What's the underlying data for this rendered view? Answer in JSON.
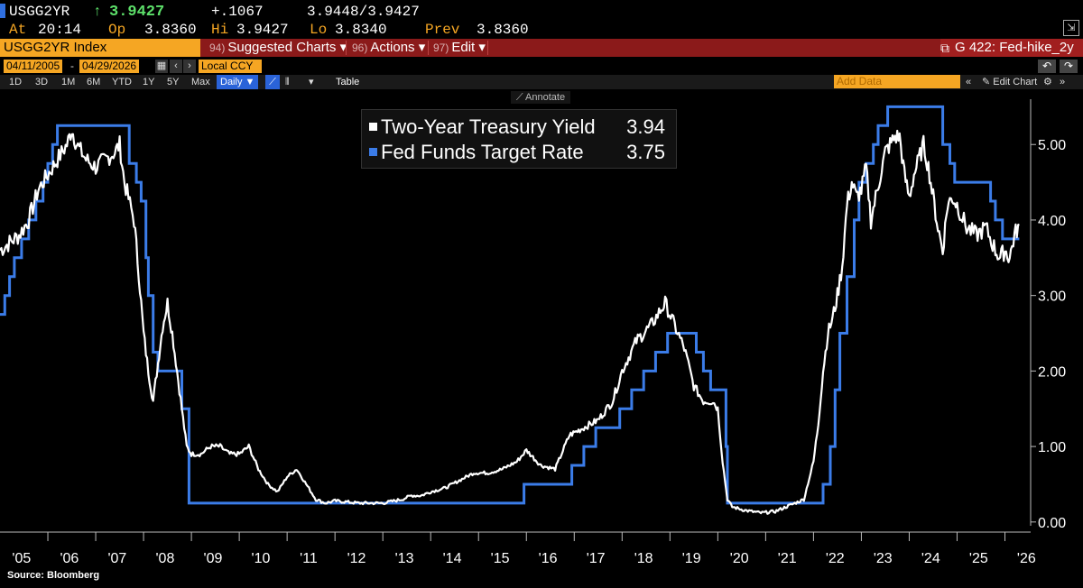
{
  "header": {
    "ticker": "USGG2YR",
    "last": "3.9427",
    "change": "+.1067",
    "bid_ask": "3.9448/3.9427",
    "at_label": "At",
    "at_time": "20:14",
    "open_label": "Op",
    "open": "3.8360",
    "high_label": "Hi",
    "high": "3.9427",
    "low_label": "Lo",
    "low": "3.8340",
    "prev_label": "Prev",
    "prev": "3.8360"
  },
  "toolbar": {
    "security": "USGG2YR Index",
    "suggested_num": "94)",
    "suggested": "Suggested Charts",
    "actions_num": "96)",
    "actions": "Actions",
    "edit_num": "97)",
    "edit": "Edit",
    "chart_name": "G 422: Fed-hike_2y"
  },
  "range": {
    "start": "04/11/2005",
    "end": "04/29/2026",
    "currency": "Local CCY"
  },
  "periods": [
    "1D",
    "3D",
    "1M",
    "6M",
    "YTD",
    "1Y",
    "5Y",
    "Max"
  ],
  "frequency": "Daily",
  "table_label": "Table",
  "add_data_placeholder": "Add Data",
  "edit_chart": "Edit Chart",
  "annotate": "Annotate",
  "source": "Source: Bloomberg",
  "colors": {
    "yield": "#ffffff",
    "fed_funds": "#3b7ce8",
    "accent": "#f5a623"
  },
  "chart_data": {
    "type": "line",
    "x_tick_labels": [
      "'05",
      "'06",
      "'07",
      "'08",
      "'09",
      "'10",
      "'11",
      "'12",
      "'13",
      "'14",
      "'15",
      "'16",
      "'17",
      "'18",
      "'19",
      "'20",
      "'21",
      "'22",
      "'23",
      "'24",
      "'25",
      "'26"
    ],
    "y_tick_labels": [
      "0.00",
      "1.00",
      "2.00",
      "3.00",
      "4.00",
      "5.00"
    ],
    "ylim": [
      -0.05,
      5.6
    ],
    "xlim": [
      2005.0,
      2026.5
    ],
    "grid": false,
    "legend_position": "top-center",
    "series": [
      {
        "name": "Two-Year Treasury Yield",
        "last_value": "3.94",
        "color": "#ffffff",
        "x": [
          2005.0,
          2005.2,
          2005.4,
          2005.6,
          2005.8,
          2006.0,
          2006.2,
          2006.4,
          2006.5,
          2006.6,
          2006.8,
          2007.0,
          2007.2,
          2007.4,
          2007.5,
          2007.6,
          2007.8,
          2007.9,
          2008.0,
          2008.1,
          2008.2,
          2008.3,
          2008.4,
          2008.5,
          2008.6,
          2008.7,
          2008.8,
          2008.9,
          2009.0,
          2009.2,
          2009.4,
          2009.6,
          2009.8,
          2010.0,
          2010.2,
          2010.4,
          2010.6,
          2010.8,
          2011.0,
          2011.2,
          2011.4,
          2011.6,
          2011.8,
          2012.0,
          2012.5,
          2013.0,
          2013.4,
          2013.6,
          2013.8,
          2014.0,
          2014.3,
          2014.6,
          2014.9,
          2015.2,
          2015.5,
          2015.8,
          2016.0,
          2016.3,
          2016.6,
          2016.9,
          2017.2,
          2017.5,
          2017.8,
          2018.0,
          2018.3,
          2018.6,
          2018.8,
          2018.9,
          2019.1,
          2019.3,
          2019.5,
          2019.7,
          2019.9,
          2020.0,
          2020.1,
          2020.2,
          2020.3,
          2020.6,
          2020.9,
          2021.2,
          2021.5,
          2021.8,
          2022.0,
          2022.1,
          2022.2,
          2022.3,
          2022.4,
          2022.5,
          2022.6,
          2022.7,
          2022.8,
          2022.9,
          2023.0,
          2023.1,
          2023.2,
          2023.3,
          2023.4,
          2023.5,
          2023.6,
          2023.7,
          2023.8,
          2023.9,
          2024.0,
          2024.1,
          2024.2,
          2024.3,
          2024.4,
          2024.5,
          2024.6,
          2024.7,
          2024.8,
          2024.9,
          2025.0,
          2025.2,
          2025.4,
          2025.6,
          2025.8,
          2025.9,
          2026.0,
          2026.1,
          2026.2,
          2026.3
        ],
        "y": [
          3.6,
          3.7,
          3.8,
          4.0,
          4.4,
          4.6,
          4.8,
          5.0,
          5.2,
          5.0,
          4.8,
          4.7,
          4.8,
          4.9,
          5.0,
          4.5,
          4.0,
          3.3,
          2.5,
          2.0,
          1.6,
          2.1,
          2.6,
          2.9,
          2.5,
          2.0,
          1.5,
          1.0,
          0.9,
          0.9,
          1.0,
          1.0,
          0.9,
          0.9,
          1.0,
          0.7,
          0.5,
          0.4,
          0.6,
          0.7,
          0.5,
          0.3,
          0.25,
          0.28,
          0.25,
          0.25,
          0.3,
          0.35,
          0.35,
          0.4,
          0.45,
          0.55,
          0.65,
          0.65,
          0.7,
          0.8,
          0.95,
          0.75,
          0.7,
          1.15,
          1.25,
          1.35,
          1.6,
          2.0,
          2.4,
          2.6,
          2.8,
          2.9,
          2.6,
          2.3,
          1.8,
          1.6,
          1.6,
          1.5,
          0.8,
          0.3,
          0.2,
          0.15,
          0.12,
          0.14,
          0.22,
          0.3,
          0.8,
          1.3,
          2.0,
          2.5,
          2.7,
          3.0,
          3.4,
          4.2,
          4.5,
          4.3,
          4.4,
          4.7,
          4.0,
          4.3,
          4.6,
          4.9,
          5.0,
          5.1,
          5.1,
          4.6,
          4.3,
          4.6,
          4.8,
          5.0,
          4.7,
          4.3,
          3.9,
          3.6,
          4.2,
          4.3,
          4.2,
          3.9,
          3.8,
          3.9,
          3.6,
          3.5,
          3.6,
          3.5,
          3.8,
          3.94
        ]
      },
      {
        "name": "Fed Funds Target Rate",
        "last_value": "3.75",
        "color": "#3b7ce8",
        "x": [
          2005.0,
          2005.1,
          2005.2,
          2005.3,
          2005.45,
          2005.6,
          2005.75,
          2005.9,
          2006.0,
          2006.1,
          2006.2,
          2006.35,
          2006.5,
          2007.7,
          2007.85,
          2007.95,
          2008.05,
          2008.1,
          2008.2,
          2008.3,
          2008.8,
          2008.95,
          2015.95,
          2016.95,
          2017.2,
          2017.45,
          2017.95,
          2018.2,
          2018.45,
          2018.7,
          2018.95,
          2019.55,
          2019.7,
          2019.85,
          2020.17,
          2020.2,
          2021.8,
          2022.2,
          2022.35,
          2022.45,
          2022.55,
          2022.7,
          2022.85,
          2022.95,
          2023.1,
          2023.25,
          2023.35,
          2023.55,
          2024.7,
          2024.85,
          2024.95,
          2025.7,
          2025.8,
          2025.95,
          2026.3
        ],
        "y": [
          2.75,
          3.0,
          3.25,
          3.5,
          3.75,
          4.0,
          4.25,
          4.5,
          4.75,
          5.0,
          5.25,
          5.25,
          5.25,
          4.75,
          4.5,
          4.25,
          3.5,
          3.0,
          2.25,
          2.0,
          1.5,
          0.25,
          0.5,
          0.75,
          1.0,
          1.25,
          1.5,
          1.75,
          2.0,
          2.25,
          2.5,
          2.25,
          2.0,
          1.75,
          1.0,
          0.25,
          0.25,
          0.5,
          1.0,
          1.75,
          2.5,
          3.25,
          4.0,
          4.5,
          4.75,
          5.0,
          5.25,
          5.5,
          5.0,
          4.75,
          4.5,
          4.25,
          4.0,
          3.75,
          3.75
        ]
      }
    ]
  }
}
